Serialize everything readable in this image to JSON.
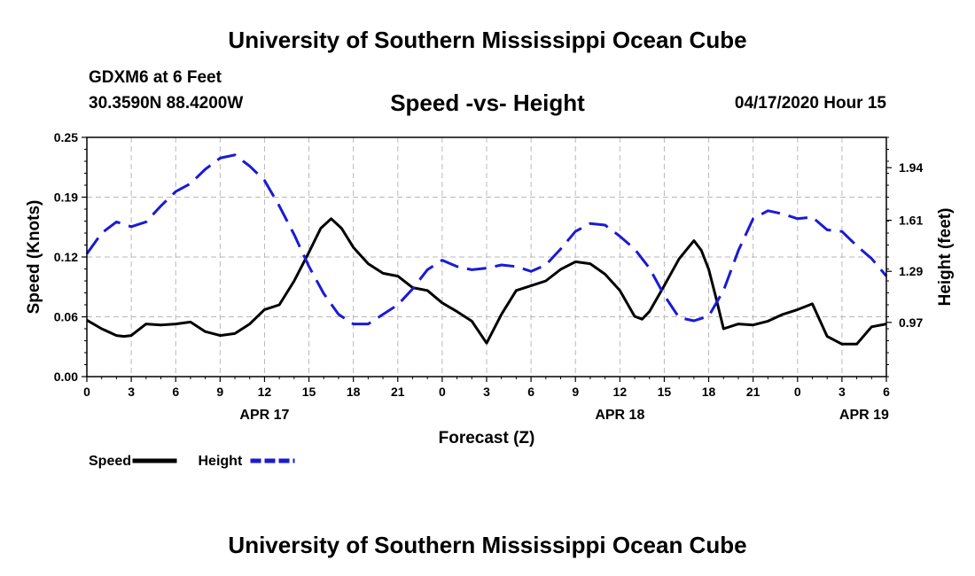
{
  "header": {
    "title": "University of Southern Mississippi Ocean Cube",
    "station": "GDXM6 at 6 Feet",
    "coordinates": "30.3590N 88.4200W",
    "subtitle": "Speed -vs- Height",
    "timestamp": "04/17/2020 Hour 15"
  },
  "footer": {
    "title": "University of Southern Mississippi Ocean Cube"
  },
  "colors": {
    "speed": "#000000",
    "height": "#1a1ad6",
    "grid": "#b8b8b8"
  },
  "chart_data": {
    "type": "line",
    "xlabel": "Forecast (Z)",
    "ylabel_left": "Speed (Knots)",
    "ylabel_right": "Height (feet)",
    "x_range_hours": [
      0,
      54
    ],
    "x_tick_hours": [
      0,
      3,
      6,
      9,
      12,
      15,
      18,
      21,
      24,
      27,
      30,
      33,
      36,
      39,
      42,
      45,
      48,
      51,
      54
    ],
    "x_tick_labels": [
      "0",
      "3",
      "6",
      "9",
      "12",
      "15",
      "18",
      "21",
      "0",
      "3",
      "6",
      "9",
      "12",
      "15",
      "18",
      "21",
      "0",
      "3",
      "6"
    ],
    "date_labels": [
      {
        "label": "APR 17",
        "hour": 12
      },
      {
        "label": "APR 18",
        "hour": 36
      },
      {
        "label": "APR 19",
        "hour": 52.5
      }
    ],
    "y_left": {
      "min": 0,
      "max": 0.25,
      "ticks": [
        "0.00",
        "0.06",
        "0.12",
        "0.19",
        "0.25"
      ],
      "tick_values": [
        0,
        0.0625,
        0.125,
        0.1875,
        0.25
      ]
    },
    "y_right": {
      "min": 0.63,
      "max": 2.13,
      "ticks": [
        "0.97",
        "1.29",
        "1.61",
        "1.94"
      ],
      "tick_values": [
        0.97,
        1.29,
        1.61,
        1.94
      ]
    },
    "legend": [
      {
        "name": "Speed",
        "style": "solid"
      },
      {
        "name": "Height",
        "style": "dashed"
      }
    ],
    "series": [
      {
        "name": "Speed",
        "axis": "left",
        "style": "solid",
        "points": [
          [
            0,
            0.059
          ],
          [
            1,
            0.05
          ],
          [
            2,
            0.043
          ],
          [
            2.5,
            0.042
          ],
          [
            3,
            0.043
          ],
          [
            4,
            0.055
          ],
          [
            5,
            0.054
          ],
          [
            6,
            0.055
          ],
          [
            7,
            0.057
          ],
          [
            8,
            0.047
          ],
          [
            9,
            0.043
          ],
          [
            10,
            0.045
          ],
          [
            11,
            0.055
          ],
          [
            12,
            0.07
          ],
          [
            13,
            0.075
          ],
          [
            14,
            0.1
          ],
          [
            15,
            0.13
          ],
          [
            15.8,
            0.155
          ],
          [
            16.5,
            0.165
          ],
          [
            17.2,
            0.155
          ],
          [
            18,
            0.135
          ],
          [
            19,
            0.118
          ],
          [
            20,
            0.108
          ],
          [
            21,
            0.105
          ],
          [
            22,
            0.093
          ],
          [
            23,
            0.09
          ],
          [
            24,
            0.077
          ],
          [
            25,
            0.068
          ],
          [
            26,
            0.058
          ],
          [
            27,
            0.035
          ],
          [
            28,
            0.065
          ],
          [
            29,
            0.09
          ],
          [
            30,
            0.095
          ],
          [
            31,
            0.1
          ],
          [
            32,
            0.112
          ],
          [
            33,
            0.12
          ],
          [
            34,
            0.118
          ],
          [
            35,
            0.107
          ],
          [
            36,
            0.09
          ],
          [
            37,
            0.063
          ],
          [
            37.5,
            0.06
          ],
          [
            38,
            0.068
          ],
          [
            39,
            0.095
          ],
          [
            40,
            0.123
          ],
          [
            41,
            0.142
          ],
          [
            41.5,
            0.132
          ],
          [
            42,
            0.112
          ],
          [
            42.5,
            0.082
          ],
          [
            43,
            0.05
          ],
          [
            44,
            0.055
          ],
          [
            45,
            0.054
          ],
          [
            46,
            0.058
          ],
          [
            47,
            0.065
          ],
          [
            48,
            0.07
          ],
          [
            49,
            0.076
          ],
          [
            50,
            0.042
          ],
          [
            51,
            0.034
          ],
          [
            52,
            0.034
          ],
          [
            53,
            0.052
          ],
          [
            54,
            0.055
          ]
        ]
      },
      {
        "name": "Height",
        "axis": "right",
        "style": "dashed",
        "points": [
          [
            0,
            1.4
          ],
          [
            1,
            1.53
          ],
          [
            2,
            1.6
          ],
          [
            3,
            1.57
          ],
          [
            4,
            1.6
          ],
          [
            5,
            1.7
          ],
          [
            6,
            1.79
          ],
          [
            7,
            1.84
          ],
          [
            8,
            1.93
          ],
          [
            9,
            2.0
          ],
          [
            10,
            2.02
          ],
          [
            11,
            1.95
          ],
          [
            12,
            1.86
          ],
          [
            13,
            1.7
          ],
          [
            14,
            1.52
          ],
          [
            15,
            1.32
          ],
          [
            16,
            1.15
          ],
          [
            17,
            1.02
          ],
          [
            18,
            0.96
          ],
          [
            19,
            0.96
          ],
          [
            20,
            1.02
          ],
          [
            21,
            1.08
          ],
          [
            22,
            1.18
          ],
          [
            23,
            1.3
          ],
          [
            24,
            1.36
          ],
          [
            25,
            1.32
          ],
          [
            26,
            1.3
          ],
          [
            27,
            1.31
          ],
          [
            28,
            1.33
          ],
          [
            29,
            1.32
          ],
          [
            30,
            1.29
          ],
          [
            31,
            1.33
          ],
          [
            32,
            1.43
          ],
          [
            33,
            1.54
          ],
          [
            34,
            1.59
          ],
          [
            35,
            1.58
          ],
          [
            36,
            1.51
          ],
          [
            37,
            1.43
          ],
          [
            38,
            1.31
          ],
          [
            39,
            1.14
          ],
          [
            40,
            1.0
          ],
          [
            41,
            0.98
          ],
          [
            42,
            1.01
          ],
          [
            43,
            1.17
          ],
          [
            44,
            1.42
          ],
          [
            45,
            1.62
          ],
          [
            46,
            1.67
          ],
          [
            47,
            1.65
          ],
          [
            48,
            1.62
          ],
          [
            49,
            1.63
          ],
          [
            50,
            1.55
          ],
          [
            51,
            1.54
          ],
          [
            52,
            1.45
          ],
          [
            53,
            1.37
          ],
          [
            54,
            1.26
          ]
        ]
      }
    ]
  }
}
